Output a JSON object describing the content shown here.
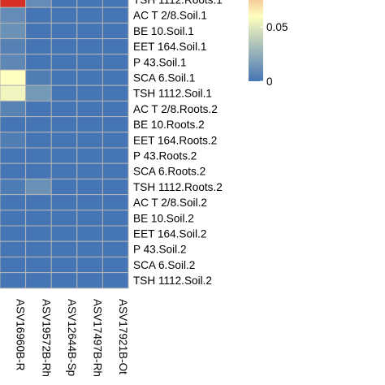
{
  "chart_data": {
    "type": "heatmap",
    "rows": [
      "TSH 1112.Roots.1",
      "AC T 2/8.Soil.1",
      "BE 10.Soil.1",
      "EET 164.Soil.1",
      "P 43.Soil.1",
      "SCA 6.Soil.1",
      "TSH 1112.Soil.1",
      "AC T 2/8.Roots.2",
      "BE 10.Roots.2",
      "EET 164.Roots.2",
      "P 43.Roots.2",
      "SCA 6.Roots.2",
      "TSH 1112.Roots.2",
      "AC T 2/8.Soil.2",
      "BE 10.Soil.2",
      "EET 164.Soil.2",
      "P 43.Soil.2",
      "SCA 6.Soil.2",
      "TSH 1112.Soil.2"
    ],
    "columns": [
      "ASV16960B-R",
      "ASV19572B-Rh",
      "ASV12644B-Sp",
      "ASV17497B-Rh",
      "ASV17921B-Ot"
    ],
    "values": [
      [
        0.12,
        0.01,
        0.0,
        0.0,
        0.0
      ],
      [
        0.01,
        0.0,
        0.0,
        0.0,
        0.0
      ],
      [
        0.012,
        0.0,
        0.0,
        0.0,
        0.0
      ],
      [
        0.005,
        0.0,
        0.0,
        0.0,
        0.0
      ],
      [
        0.008,
        0.0,
        0.0,
        0.0,
        0.0
      ],
      [
        0.06,
        0.004,
        0.0,
        0.0,
        0.0
      ],
      [
        0.055,
        0.015,
        0.0,
        0.0,
        0.0
      ],
      [
        0.006,
        0.0,
        0.0,
        0.0,
        0.0
      ],
      [
        0.0,
        0.0,
        0.0,
        0.0,
        0.0
      ],
      [
        0.004,
        0.0,
        0.0,
        0.0,
        0.0
      ],
      [
        0.0,
        0.0,
        0.0,
        0.0,
        0.0
      ],
      [
        0.0,
        0.0,
        0.0,
        0.0,
        0.0
      ],
      [
        0.003,
        0.012,
        0.0,
        0.0,
        0.0
      ],
      [
        0.0,
        0.0,
        0.0,
        0.0,
        0.0
      ],
      [
        0.0,
        0.0,
        0.0,
        0.0,
        0.0
      ],
      [
        0.0,
        0.0,
        0.0,
        0.0,
        0.0
      ],
      [
        0.0,
        0.0,
        0.0,
        0.0,
        0.0
      ],
      [
        0.0,
        0.0,
        0.0,
        0.0,
        0.0
      ],
      [
        0.0,
        0.0,
        0.0,
        0.0,
        0.0
      ]
    ],
    "colorbar": {
      "ticks": [
        {
          "value": 0,
          "label": "0"
        },
        {
          "value": 0.05,
          "label": "0.05"
        }
      ],
      "range": [
        0,
        0.12
      ],
      "colors": [
        "#4575b4",
        "#ffffbf",
        "#d73027"
      ]
    },
    "grid_color": "#b3b3b3",
    "title": "",
    "xlabel": "",
    "ylabel": ""
  }
}
